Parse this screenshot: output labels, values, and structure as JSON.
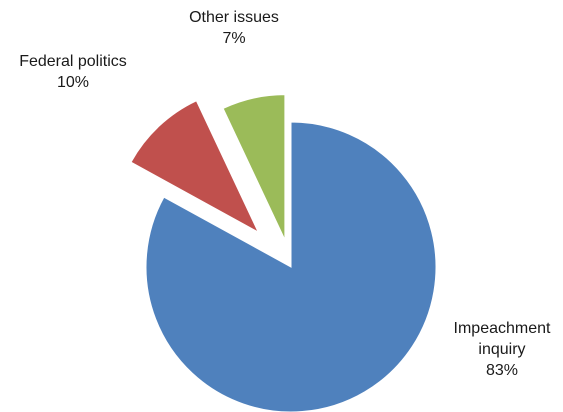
{
  "chart_data": {
    "type": "pie",
    "exploded": true,
    "title": "",
    "slices": [
      {
        "label_lines": [
          "Impeachment",
          "inquiry"
        ],
        "percent_label": "83%",
        "value": 83,
        "color": "#4f81bd"
      },
      {
        "label_lines": [
          "Federal politics"
        ],
        "percent_label": "10%",
        "value": 10,
        "color": "#c0504d"
      },
      {
        "label_lines": [
          "Other issues"
        ],
        "percent_label": "7%",
        "value": 7,
        "color": "#9bbb59"
      }
    ]
  }
}
